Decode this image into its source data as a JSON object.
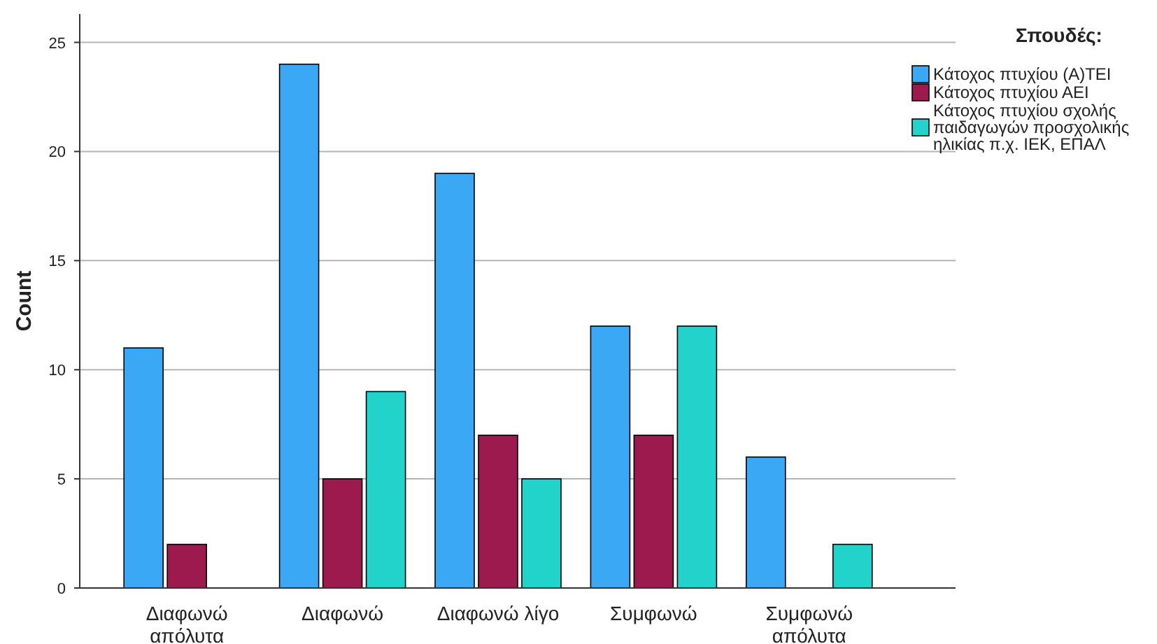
{
  "chart_data": {
    "type": "bar",
    "ylabel": "Count",
    "legend_title": "Σπουδές:",
    "categories": [
      "Διαφωνώ απόλυτα",
      "Διαφωνώ",
      "Διαφωνώ λίγο",
      "Συμφωνώ",
      "Συμφωνώ απόλυτα"
    ],
    "series": [
      {
        "name": "Κάτοχος πτυχίου (Α)ΤΕΙ",
        "color": "#3ba8f5",
        "values": [
          11,
          24,
          19,
          12,
          6
        ]
      },
      {
        "name": "Κάτοχος πτυχίου ΑΕΙ",
        "color": "#9c1a4e",
        "values": [
          2,
          5,
          7,
          7,
          null
        ]
      },
      {
        "name": "Κάτοχος πτυχίου σχολής παιδαγωγών προσχολικής ηλικίας π.χ. ΙΕΚ, ΕΠΑΛ",
        "color": "#22d3cc",
        "values": [
          null,
          9,
          5,
          12,
          2
        ]
      }
    ],
    "ylim": [
      0,
      26.3
    ],
    "yticks": [
      0,
      5,
      10,
      15,
      20,
      25
    ],
    "grid": "y",
    "legend": "top right"
  }
}
